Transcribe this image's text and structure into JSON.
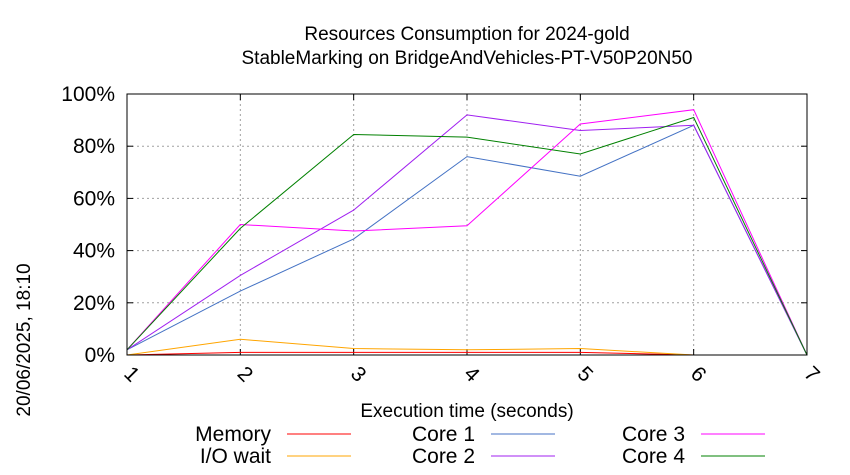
{
  "chart_data": {
    "type": "line",
    "title": "Resources Consumption for 2024-gold",
    "subtitle": "StableMarking on BridgeAndVehicles-PT-V50P20N50",
    "xlabel": "Execution time (seconds)",
    "ylabel": "",
    "timestamp": "20/06/2025, 18:10",
    "xlim": [
      1,
      7
    ],
    "ylim": [
      0,
      100
    ],
    "x_ticks": [
      "1",
      "2",
      "3",
      "4",
      "5",
      "6",
      "7"
    ],
    "y_ticks": [
      "0%",
      "20%",
      "40%",
      "60%",
      "80%",
      "100%"
    ],
    "grid": true,
    "legend_position": "bottom",
    "x": [
      1,
      2,
      3,
      4,
      5,
      6,
      7
    ],
    "series": [
      {
        "name": "Memory",
        "color": "#ff0000",
        "values": [
          0,
          1,
          1,
          1,
          1,
          0,
          0
        ]
      },
      {
        "name": "I/O wait",
        "color": "#ffa500",
        "values": [
          0,
          6,
          2.5,
          2,
          2.5,
          0,
          0
        ]
      },
      {
        "name": "Core 1",
        "color": "#4472c4",
        "values": [
          2,
          24.5,
          44.5,
          76,
          68.5,
          88,
          0
        ]
      },
      {
        "name": "Core 2",
        "color": "#a020f0",
        "values": [
          2,
          30.5,
          55.5,
          92,
          86,
          88,
          0
        ]
      },
      {
        "name": "Core 3",
        "color": "#ff00ff",
        "values": [
          2,
          50,
          47.5,
          49.5,
          88.5,
          94,
          0
        ]
      },
      {
        "name": "Core 4",
        "color": "#008000",
        "values": [
          2,
          48.5,
          84.5,
          83.5,
          77,
          91,
          0
        ]
      }
    ]
  }
}
